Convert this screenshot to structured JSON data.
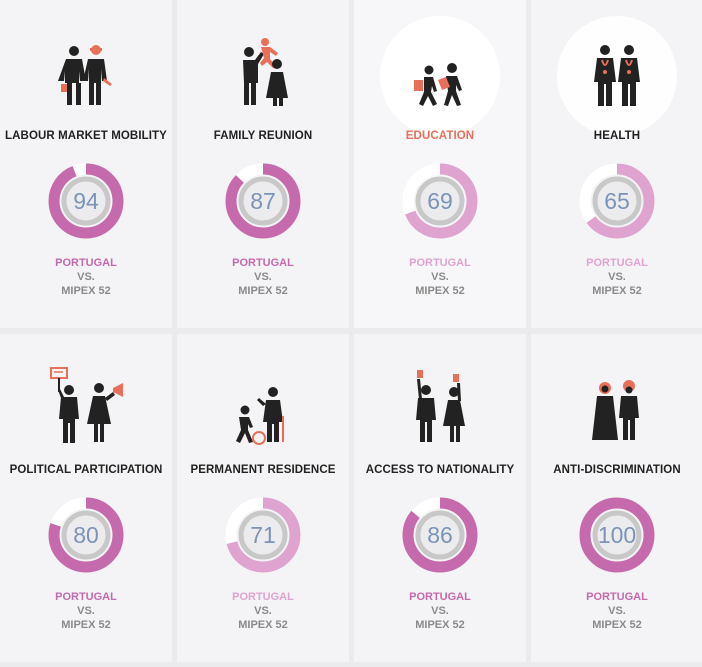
{
  "colors": {
    "strong": "#c46aad",
    "light": "#dfa3d0",
    "gray": "#c8c8c8",
    "inner": "#ececee",
    "accent": "#e8705a",
    "score_text": "#7a94b8"
  },
  "cards": [
    {
      "title": "LABOUR MARKET MOBILITY",
      "score": "94",
      "value": 94,
      "country": "PORTUGAL",
      "vs": "VS.",
      "compare": "MIPEX 52",
      "tone": "strong",
      "icon": "workers-icon"
    },
    {
      "title": "FAMILY REUNION",
      "score": "87",
      "value": 87,
      "country": "PORTUGAL",
      "vs": "VS.",
      "compare": "MIPEX 52",
      "tone": "strong",
      "icon": "family-icon"
    },
    {
      "title": "EDUCATION",
      "score": "69",
      "value": 69,
      "country": "PORTUGAL",
      "vs": "VS.",
      "compare": "MIPEX 52",
      "tone": "light",
      "icon": "students-icon"
    },
    {
      "title": "HEALTH",
      "score": "65",
      "value": 65,
      "country": "PORTUGAL",
      "vs": "VS.",
      "compare": "MIPEX 52",
      "tone": "light",
      "icon": "doctors-icon"
    },
    {
      "title": "POLITICAL PARTICIPATION",
      "score": "80",
      "value": 80,
      "country": "PORTUGAL",
      "vs": "VS.",
      "compare": "MIPEX 52",
      "tone": "strong",
      "icon": "protesters-icon"
    },
    {
      "title": "PERMANENT RESIDENCE",
      "score": "71",
      "value": 71,
      "country": "PORTUGAL",
      "vs": "VS.",
      "compare": "MIPEX 52",
      "tone": "light",
      "icon": "residents-icon"
    },
    {
      "title": "ACCESS TO NATIONALITY",
      "score": "86",
      "value": 86,
      "country": "PORTUGAL",
      "vs": "VS.",
      "compare": "MIPEX 52",
      "tone": "strong",
      "icon": "voters-icon"
    },
    {
      "title": "ANTI-DISCRIMINATION",
      "score": "100",
      "value": 100,
      "country": "PORTUGAL",
      "vs": "VS.",
      "compare": "MIPEX 52",
      "tone": "strong",
      "icon": "diverse-people-icon"
    }
  ],
  "active_card": "EDUCATION"
}
